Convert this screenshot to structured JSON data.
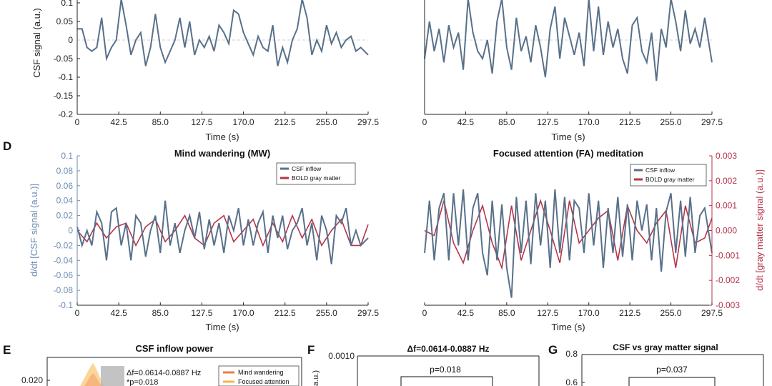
{
  "colors": {
    "csf": "#58708a",
    "bold": "#b5354a",
    "axis": "#222222",
    "grid_zero": "#c8c8c8",
    "right_axis": "#b5354a",
    "mw_fill": "#f07a4a",
    "fa_fill": "#f5b547",
    "band_fill": "#b9b9b9"
  },
  "chart_data": [
    {
      "id": "C-left",
      "type": "line",
      "panel_label": "",
      "title": "",
      "xlabel": "Time (s)",
      "ylabel": "CSF signal (a.u.)",
      "xlim": [
        0,
        297.5
      ],
      "ylim": [
        -0.2,
        0.12
      ],
      "xticks": [
        "0",
        "42.5",
        "85.0",
        "127.5",
        "170.0",
        "212.5",
        "255.0",
        "297.5"
      ],
      "yticks": [
        "-0.2",
        "-0.15",
        "-0.1",
        "-0.05",
        "0",
        "0.05",
        "0.1"
      ],
      "series": [
        {
          "name": "CSF signal",
          "x": [
            0,
            5,
            10,
            15,
            20,
            25,
            30,
            35,
            40,
            45,
            50,
            55,
            60,
            65,
            70,
            75,
            80,
            85,
            90,
            95,
            100,
            105,
            110,
            115,
            120,
            125,
            130,
            135,
            140,
            145,
            150,
            155,
            160,
            165,
            170,
            175,
            180,
            185,
            190,
            195,
            200,
            205,
            210,
            215,
            220,
            225,
            230,
            235,
            240,
            245,
            250,
            255,
            260,
            265,
            270,
            275,
            280,
            285,
            290,
            297.5
          ],
          "y": [
            0.03,
            0.03,
            -0.02,
            -0.03,
            -0.02,
            0.06,
            -0.05,
            -0.02,
            0.0,
            0.11,
            0.04,
            -0.04,
            0.0,
            0.02,
            -0.07,
            -0.02,
            0.07,
            -0.02,
            -0.06,
            -0.03,
            0.0,
            0.06,
            -0.02,
            0.05,
            -0.04,
            0.0,
            -0.02,
            0.01,
            -0.03,
            0.04,
            0.02,
            -0.01,
            0.08,
            0.07,
            0.02,
            -0.01,
            -0.04,
            0.01,
            -0.02,
            -0.03,
            0.04,
            -0.07,
            -0.02,
            -0.06,
            0.0,
            0.03,
            0.11,
            0.06,
            -0.04,
            0.0,
            -0.03,
            0.04,
            -0.01,
            0.02,
            -0.02,
            0.0,
            0.01,
            -0.03,
            -0.02,
            -0.04
          ]
        }
      ]
    },
    {
      "id": "C-right",
      "type": "line",
      "panel_label": "",
      "title": "",
      "xlabel": "Time (s)",
      "ylabel": "",
      "xlim": [
        0,
        297.5
      ],
      "ylim": [
        -0.2,
        0.12
      ],
      "xticks": [
        "0",
        "42.5",
        "85.0",
        "127.5",
        "170.0",
        "212.5",
        "255.0",
        "297.5"
      ],
      "series": [
        {
          "name": "CSF signal",
          "x": [
            0,
            5,
            10,
            15,
            20,
            25,
            30,
            35,
            40,
            45,
            50,
            55,
            60,
            65,
            70,
            75,
            80,
            85,
            90,
            95,
            100,
            105,
            110,
            115,
            120,
            125,
            130,
            135,
            140,
            145,
            150,
            155,
            160,
            165,
            170,
            175,
            180,
            185,
            190,
            195,
            200,
            205,
            210,
            215,
            220,
            225,
            230,
            235,
            240,
            245,
            250,
            255,
            260,
            265,
            270,
            275,
            280,
            285,
            290,
            297.5
          ],
          "y": [
            -0.05,
            0.05,
            -0.03,
            0.03,
            -0.06,
            0.04,
            -0.02,
            0.02,
            -0.08,
            0.13,
            0.02,
            -0.03,
            -0.05,
            0.0,
            -0.09,
            0.05,
            0.12,
            -0.02,
            -0.08,
            0.06,
            -0.03,
            0.01,
            -0.06,
            0.04,
            -0.02,
            -0.1,
            0.03,
            0.09,
            -0.05,
            0.06,
            0.01,
            -0.04,
            0.02,
            -0.07,
            0.12,
            -0.03,
            0.09,
            -0.04,
            0.05,
            -0.02,
            0.03,
            -0.05,
            -0.09,
            0.04,
            0.06,
            -0.03,
            -0.06,
            0.02,
            -0.11,
            0.03,
            -0.02,
            0.12,
            0.05,
            -0.03,
            0.08,
            -0.01,
            0.03,
            -0.02,
            0.06,
            -0.06
          ]
        }
      ]
    },
    {
      "id": "D-left",
      "type": "line",
      "panel_label": "D",
      "title": "Mind wandering (MW)",
      "xlabel": "Time (s)",
      "ylabel": "d/dt [CSF signal (a.u.)]",
      "xlim": [
        0,
        297.5
      ],
      "ylim": [
        -0.1,
        0.1
      ],
      "xticks": [
        "0",
        "42.5",
        "85.0",
        "127.5",
        "170.0",
        "212.5",
        "255.0",
        "297.5"
      ],
      "yticks": [
        "-0.1",
        "-0.08",
        "-0.06",
        "-0.04",
        "-0.02",
        "0",
        "0.02",
        "0.04",
        "0.06",
        "0.08",
        "0.1"
      ],
      "legend": [
        "CSF inflow",
        "BOLD gray matter"
      ],
      "series": [
        {
          "name": "CSF inflow",
          "x": [
            0,
            5,
            10,
            15,
            20,
            25,
            30,
            35,
            40,
            45,
            50,
            55,
            60,
            65,
            70,
            75,
            80,
            85,
            90,
            95,
            100,
            105,
            110,
            115,
            120,
            125,
            130,
            135,
            140,
            145,
            150,
            155,
            160,
            165,
            170,
            175,
            180,
            185,
            190,
            195,
            200,
            205,
            210,
            215,
            220,
            225,
            230,
            235,
            240,
            245,
            250,
            255,
            260,
            265,
            270,
            275,
            280,
            285,
            290,
            297.5
          ],
          "y": [
            0.005,
            -0.02,
            0.0,
            -0.02,
            0.025,
            0.01,
            -0.04,
            0.025,
            0.03,
            -0.02,
            0.01,
            -0.04,
            0.02,
            0.01,
            -0.035,
            0.0,
            0.02,
            -0.03,
            0.04,
            -0.02,
            0.01,
            -0.03,
            0.0,
            0.02,
            -0.01,
            0.025,
            -0.025,
            0.015,
            -0.02,
            0.01,
            -0.03,
            0.02,
            0.0,
            0.03,
            -0.02,
            0.015,
            -0.02,
            0.01,
            0.025,
            -0.03,
            0.02,
            -0.01,
            0.02,
            -0.025,
            0.0,
            0.01,
            0.03,
            -0.02,
            0.01,
            -0.04,
            0.02,
            0.0,
            -0.045,
            0.02,
            0.01,
            0.03,
            -0.02,
            0.0,
            -0.02,
            -0.01
          ]
        },
        {
          "name": "BOLD gray matter",
          "x": [
            0,
            10,
            20,
            30,
            40,
            50,
            60,
            70,
            80,
            90,
            100,
            110,
            120,
            130,
            140,
            150,
            160,
            170,
            180,
            190,
            200,
            210,
            220,
            230,
            240,
            250,
            260,
            270,
            280,
            290,
            297.5
          ],
          "y": [
            0.0,
            -0.015,
            0.01,
            -0.01,
            0.005,
            0.01,
            -0.02,
            0.005,
            0.015,
            -0.015,
            0.0,
            0.02,
            -0.01,
            -0.02,
            0.01,
            0.02,
            -0.015,
            0.0,
            0.015,
            -0.02,
            0.01,
            -0.015,
            0.02,
            -0.01,
            0.015,
            -0.02,
            0.0,
            0.015,
            -0.02,
            -0.02,
            0.008
          ]
        }
      ]
    },
    {
      "id": "D-right",
      "type": "line",
      "panel_label": "",
      "title": "Focused attention (FA) meditation",
      "xlabel": "Time (s)",
      "ylabel_right": "d/dt [gray matter signal (a.u.)]",
      "xlim": [
        0,
        297.5
      ],
      "ylim": [
        -0.1,
        0.1
      ],
      "ylim_right": [
        -0.003,
        0.003
      ],
      "xticks": [
        "0",
        "42.5",
        "85.0",
        "127.5",
        "170.0",
        "212.5",
        "255.0",
        "297.5"
      ],
      "yticks_right": [
        "-0.003",
        "-0.002",
        "-0.001",
        "0.000",
        "0.001",
        "0.002",
        "0.003"
      ],
      "legend": [
        "CSF inflow",
        "BOLD gray matter"
      ],
      "series": [
        {
          "name": "CSF inflow",
          "x": [
            0,
            5,
            10,
            15,
            20,
            25,
            30,
            35,
            40,
            45,
            50,
            55,
            60,
            65,
            70,
            75,
            80,
            85,
            90,
            95,
            100,
            105,
            110,
            115,
            120,
            125,
            130,
            135,
            140,
            145,
            150,
            155,
            160,
            165,
            170,
            175,
            180,
            185,
            190,
            195,
            200,
            205,
            210,
            215,
            220,
            225,
            230,
            235,
            240,
            245,
            250,
            255,
            260,
            265,
            270,
            275,
            280,
            285,
            290,
            297.5
          ],
          "y": [
            -0.03,
            0.04,
            -0.04,
            0.03,
            0.05,
            -0.04,
            0.05,
            -0.02,
            0.055,
            -0.04,
            0.03,
            0.05,
            -0.03,
            -0.06,
            0.04,
            -0.04,
            0.035,
            -0.05,
            -0.09,
            0.045,
            -0.03,
            0.04,
            -0.045,
            0.05,
            -0.02,
            0.04,
            -0.05,
            0.055,
            -0.03,
            0.045,
            -0.04,
            0.04,
            0.03,
            -0.03,
            0.05,
            -0.02,
            0.04,
            -0.05,
            0.03,
            -0.03,
            0.045,
            -0.035,
            0.035,
            -0.04,
            0.04,
            0.0,
            0.035,
            -0.04,
            0.03,
            -0.055,
            0.025,
            0.05,
            -0.03,
            0.04,
            -0.035,
            0.045,
            -0.03,
            0.02,
            0.03,
            -0.03
          ]
        },
        {
          "name": "BOLD gray matter",
          "x": [
            0,
            10,
            20,
            30,
            40,
            50,
            60,
            70,
            80,
            90,
            100,
            110,
            120,
            130,
            140,
            150,
            160,
            170,
            180,
            190,
            200,
            210,
            220,
            230,
            240,
            250,
            260,
            270,
            280,
            290,
            297.5
          ],
          "y": [
            0.0,
            -0.0002,
            0.0012,
            -0.0005,
            -0.0013,
            0.0,
            0.001,
            -0.0005,
            -0.0015,
            0.001,
            -0.0012,
            0.0,
            0.0012,
            0.0,
            -0.0013,
            0.0012,
            -0.0005,
            0.0,
            0.0005,
            0.0008,
            -0.0012,
            0.001,
            0.0,
            -0.0005,
            0.0003,
            0.0008,
            -0.0015,
            0.001,
            -0.0005,
            -0.0003,
            0.0005
          ]
        }
      ]
    },
    {
      "id": "E",
      "type": "area",
      "panel_label": "E",
      "title": "CSF inflow power",
      "ytick_top": "0.020",
      "annotations": [
        "Δf=0.0614-0.0887 Hz",
        "*p=0.018"
      ],
      "legend": [
        "Mind wandering",
        "Focused attention"
      ]
    },
    {
      "id": "F",
      "type": "bar",
      "panel_label": "F",
      "title": "Δf=0.0614-0.0887 Hz",
      "ytick_top": "0.0010",
      "ylabel_fragment": "a.u.)",
      "annotation": "p=0.018"
    },
    {
      "id": "G",
      "type": "bar",
      "panel_label": "G",
      "title": "CSF vs gray matter signal",
      "yticks": [
        "0.8",
        "0.6"
      ],
      "annotation": "p=0.037"
    }
  ]
}
